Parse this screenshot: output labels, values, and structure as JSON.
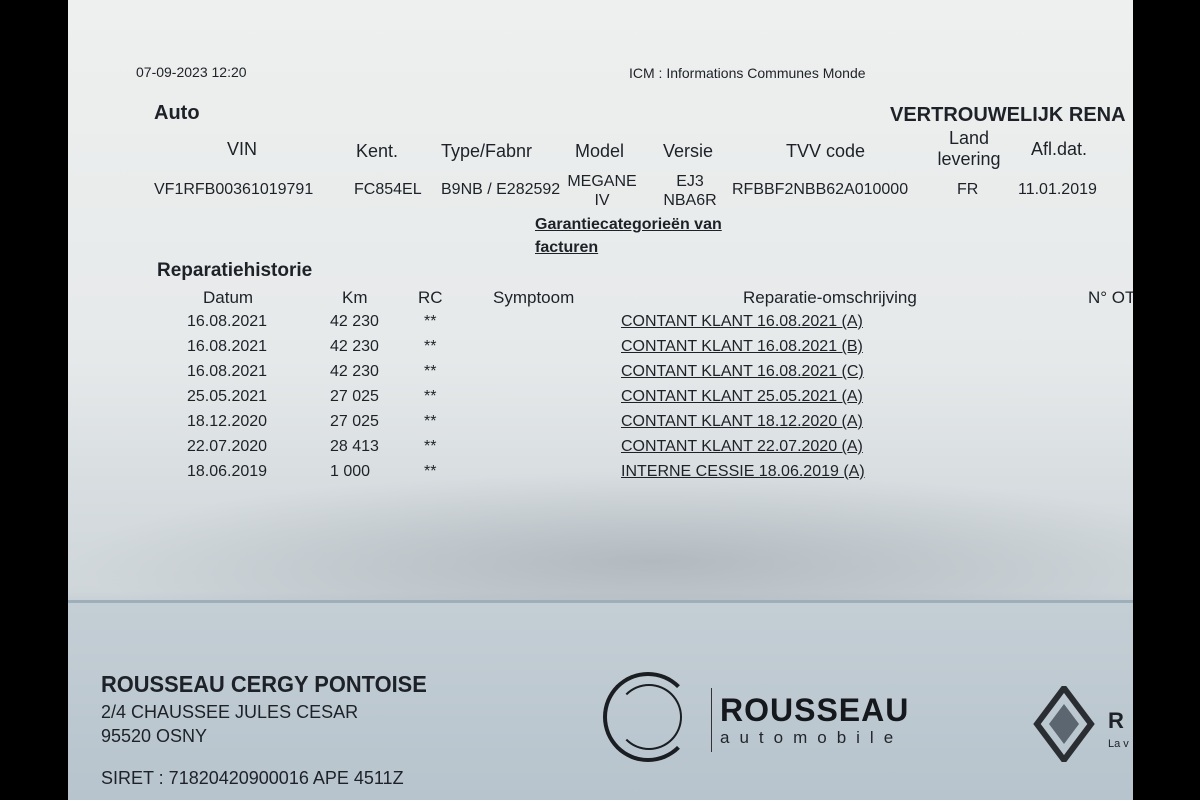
{
  "header": {
    "datetime": "07-09-2023 12:20",
    "system": "ICM : Informations Communes Monde",
    "section_auto": "Auto",
    "confidential": "VERTROUWELIJK RENA"
  },
  "vehicle": {
    "headers": [
      "VIN",
      "Kent.",
      "Type/Fabnr",
      "Model",
      "Versie",
      "TVV code",
      "Land levering",
      "Afl.dat."
    ],
    "values": {
      "vin": "VF1RFB00361019791",
      "kent": "FC854EL",
      "type": "B9NB / E282592",
      "model_1": "MEGANE",
      "model_2": "IV",
      "versie_1": "EJ3",
      "versie_2": "NBA6R",
      "tvv": "RFBBF2NBB62A010000",
      "land": "FR",
      "afl": "11.01.2019"
    },
    "land_1": "Land",
    "land_2": "levering",
    "warranty_link_1": "Garantiecategorieën van",
    "warranty_link_2": "facturen"
  },
  "history": {
    "title": "Reparatiehistorie",
    "headers": {
      "datum": "Datum",
      "km": "Km",
      "rc": "RC",
      "symptoom": "Symptoom",
      "omschrijving": "Reparatie-omschrijving",
      "not": "N° OT"
    },
    "rows": [
      {
        "datum": "16.08.2021",
        "km": "42 230",
        "rc": "**",
        "omschrijving": "CONTANT KLANT 16.08.2021 (A)"
      },
      {
        "datum": "16.08.2021",
        "km": "42 230",
        "rc": "**",
        "omschrijving": "CONTANT KLANT 16.08.2021 (B)"
      },
      {
        "datum": "16.08.2021",
        "km": "42 230",
        "rc": "**",
        "omschrijving": "CONTANT KLANT 16.08.2021 (C)"
      },
      {
        "datum": "25.05.2021",
        "km": "27 025",
        "rc": "**",
        "omschrijving": "CONTANT KLANT 25.05.2021 (A)"
      },
      {
        "datum": "18.12.2020",
        "km": "27 025",
        "rc": "**",
        "omschrijving": "CONTANT KLANT 18.12.2020 (A)"
      },
      {
        "datum": "22.07.2020",
        "km": "28 413",
        "rc": "**",
        "omschrijving": "CONTANT KLANT 22.07.2020 (A)"
      },
      {
        "datum": "18.06.2019",
        "km": "1 000",
        "rc": "**",
        "omschrijving": "INTERNE CESSIE 18.06.2019 (A)"
      }
    ]
  },
  "footer": {
    "company": "ROUSSEAU CERGY PONTOISE",
    "address_1": "2/4 CHAUSSEE JULES CESAR",
    "address_2": "95520 OSNY",
    "siret": "SIRET : 71820420900016 APE 4511Z",
    "logo_name": "ROUSSEAU",
    "logo_sub": "automobile",
    "brand_partial": "R",
    "brand_tagline_partial": "La v"
  }
}
